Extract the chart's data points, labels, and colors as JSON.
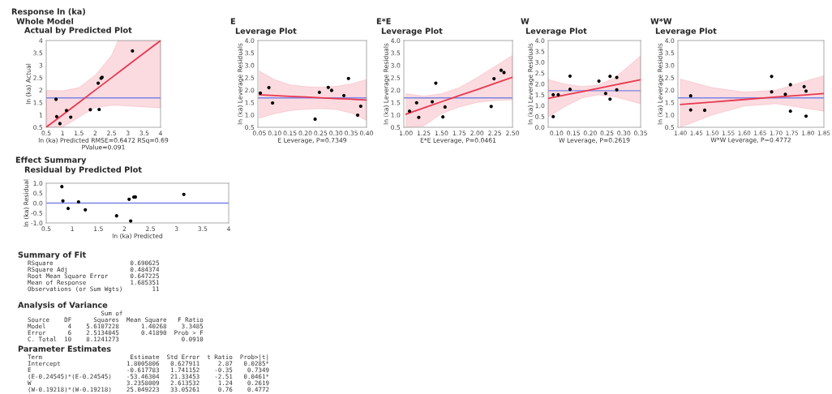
{
  "chart_data": [
    {
      "type": "scatter",
      "title": "Actual by Predicted Plot",
      "annotations": [
        "Response ln (ka)",
        "Whole Model"
      ],
      "xlabel": "ln (ka) Predicted RMSE=0.6472 RSq=0.69\nPValue=0.091",
      "ylabel": "ln (ka) Actual",
      "xlim": [
        0.5,
        4
      ],
      "ylim": [
        0.5,
        4
      ],
      "xticks": [
        0.5,
        1,
        1.5,
        2,
        2.5,
        3,
        3.5,
        4
      ],
      "yticks": [
        0.5,
        1,
        1.5,
        2,
        2.5,
        3,
        3.5,
        4
      ],
      "ref_lines": [
        {
          "axis": "y",
          "value": 1.685,
          "color": "#7b83e8"
        }
      ],
      "series": [
        {
          "type": "line",
          "color": "#e8384f",
          "x": [
            0.5,
            1.0,
            1.5,
            2.0,
            2.5,
            2.7,
            3.0,
            3.5,
            4.0
          ],
          "values": [
            0.5,
            1.0,
            1.5,
            2.0,
            2.5,
            2.7,
            3.0,
            3.5,
            4.0
          ],
          "upper": [
            1.99,
            1.97,
            2.1,
            2.6,
            3.4,
            4.0,
            4.0,
            4.0,
            4.0
          ],
          "lower": [
            0.5,
            0.5,
            0.9,
            1.3,
            1.38,
            1.38,
            1.36,
            1.32,
            1.28
          ]
        },
        {
          "type": "scatter",
          "color": "#000000",
          "marker": "circle",
          "x": [
            0.8,
            0.82,
            0.92,
            1.12,
            1.25,
            1.85,
            2.09,
            2.12,
            2.18,
            2.21,
            3.14
          ],
          "values": [
            1.63,
            0.93,
            0.65,
            1.18,
            0.91,
            1.21,
            2.28,
            1.22,
            2.48,
            2.52,
            3.58
          ]
        }
      ]
    },
    {
      "type": "scatter",
      "title": "E",
      "subtitle": "Leverage Plot",
      "xlabel": "E Leverage, P=0.7349",
      "ylabel": "ln (ka) Leverage Residuals",
      "xlim": [
        0.045,
        0.4
      ],
      "ylim": [
        0.5,
        4.0
      ],
      "xticks": [
        {
          "value": 0.05,
          "label": "0.05"
        },
        {
          "value": 0.1,
          "label": "0.10"
        },
        {
          "value": 0.15,
          "label": "0.15"
        },
        {
          "value": 0.2,
          "label": "0.20"
        },
        {
          "value": 0.25,
          "label": "0.25"
        },
        {
          "value": 0.3,
          "label": "0.30"
        },
        {
          "value": 0.35,
          "label": "0.35"
        },
        {
          "value": 0.4,
          "label": "0.40"
        }
      ],
      "yticks": [
        0.5,
        {
          "value": 1,
          "label": "1.0"
        },
        1.5,
        {
          "value": 2,
          "label": "2.0"
        },
        2.5,
        {
          "value": 3,
          "label": "3.0"
        },
        3.5,
        {
          "value": 4,
          "label": "4.0"
        }
      ],
      "ref_lines": [
        {
          "axis": "y",
          "value": 1.685,
          "color": "#7b83e8"
        }
      ],
      "series": [
        {
          "type": "line",
          "color": "#e8384f",
          "x": [
            0.05,
            0.1,
            0.15,
            0.2,
            0.25,
            0.3,
            0.35,
            0.4
          ],
          "values": [
            1.81,
            1.78,
            1.75,
            1.72,
            1.69,
            1.66,
            1.63,
            1.6
          ],
          "upper": [
            2.77,
            2.42,
            2.22,
            2.14,
            2.12,
            2.15,
            2.25,
            2.43
          ],
          "lower": [
            0.87,
            1.05,
            1.17,
            1.23,
            1.25,
            1.22,
            1.07,
            0.78
          ]
        },
        {
          "type": "scatter",
          "color": "#000000",
          "marker": "circle",
          "x": [
            0.053,
            0.081,
            0.093,
            0.232,
            0.246,
            0.275,
            0.286,
            0.326,
            0.341,
            0.371,
            0.381
          ],
          "values": [
            1.88,
            2.1,
            1.48,
            0.83,
            1.91,
            2.11,
            1.99,
            1.78,
            2.47,
            0.99,
            1.35
          ]
        }
      ]
    },
    {
      "type": "scatter",
      "title": "E*E",
      "subtitle": "Leverage Plot",
      "xlabel": "E*E Leverage, P=0.0461",
      "ylabel": "ln (ka) Leverage Residuals",
      "xlim": [
        0.97,
        2.5
      ],
      "ylim": [
        0.5,
        4.0
      ],
      "xticks": [
        {
          "value": 1,
          "label": "1.00"
        },
        {
          "value": 1.25,
          "label": "1.25"
        },
        {
          "value": 1.5,
          "label": "1.50"
        },
        {
          "value": 1.75,
          "label": "1.75"
        },
        {
          "value": 2,
          "label": "2.00"
        },
        {
          "value": 2.25,
          "label": "2.25"
        },
        {
          "value": 2.5,
          "label": "2.50"
        }
      ],
      "yticks": [
        0.5,
        {
          "value": 1,
          "label": "1.0"
        },
        1.5,
        {
          "value": 2,
          "label": "2.0"
        },
        2.5,
        {
          "value": 3,
          "label": "3.0"
        },
        3.5,
        {
          "value": 4,
          "label": "4.0"
        }
      ],
      "ref_lines": [
        {
          "axis": "y",
          "value": 1.685,
          "color": "#7b83e8"
        }
      ],
      "series": [
        {
          "type": "line",
          "color": "#e8384f",
          "x": [
            1.0,
            1.25,
            1.5,
            1.75,
            2.0,
            2.25,
            2.5
          ],
          "values": [
            1.03,
            1.28,
            1.53,
            1.78,
            2.02,
            2.27,
            2.52
          ],
          "upper": [
            1.86,
            1.76,
            1.86,
            2.1,
            2.5,
            2.95,
            3.4
          ],
          "lower": [
            0.5,
            0.55,
            1.05,
            1.32,
            1.5,
            1.58,
            1.6
          ]
        },
        {
          "type": "scatter",
          "color": "#000000",
          "marker": "circle",
          "x": [
            1.05,
            1.15,
            1.18,
            1.37,
            1.42,
            1.52,
            1.55,
            2.2,
            2.24,
            2.34,
            2.38
          ],
          "values": [
            1.15,
            1.49,
            0.9,
            1.53,
            2.28,
            0.92,
            1.32,
            1.34,
            2.46,
            2.8,
            2.71
          ]
        }
      ]
    },
    {
      "type": "scatter",
      "title": "W",
      "subtitle": "Leverage Plot",
      "xlabel": "W Leverage, P=0.2619",
      "ylabel": "ln (ka) Leverage Residuals",
      "xlim": [
        0.075,
        0.35
      ],
      "ylim": [
        0,
        4.0
      ],
      "xticks": [
        {
          "value": 0.1,
          "label": "0.10"
        },
        {
          "value": 0.15,
          "label": "0.15"
        },
        {
          "value": 0.2,
          "label": "0.20"
        },
        {
          "value": 0.25,
          "label": "0.25"
        },
        {
          "value": 0.3,
          "label": "0.30"
        },
        {
          "value": 0.35,
          "label": "0.35"
        }
      ],
      "yticks": [
        {
          "value": 0,
          "label": "0.0"
        },
        0.5,
        {
          "value": 1,
          "label": "1.0"
        },
        1.5,
        {
          "value": 2,
          "label": "2.0"
        },
        2.5,
        {
          "value": 3,
          "label": "3.0"
        },
        3.5,
        {
          "value": 4,
          "label": "4.0"
        }
      ],
      "ref_lines": [
        {
          "axis": "y",
          "value": 1.685,
          "color": "#7b83e8"
        }
      ],
      "series": [
        {
          "type": "line",
          "color": "#e8384f",
          "x": [
            0.075,
            0.125,
            0.175,
            0.225,
            0.275,
            0.35
          ],
          "values": [
            1.33,
            1.49,
            1.64,
            1.8,
            1.96,
            2.19
          ],
          "upper": [
            2.2,
            2.0,
            1.88,
            1.95,
            2.3,
            3.3
          ],
          "lower": [
            0.48,
            0.95,
            1.35,
            1.5,
            1.4,
            1.08
          ]
        },
        {
          "type": "scatter",
          "color": "#000000",
          "marker": "circle",
          "x": [
            0.09,
            0.105,
            0.14,
            0.14,
            0.226,
            0.246,
            0.259,
            0.259,
            0.279,
            0.279,
            0.09
          ],
          "values": [
            1.5,
            1.5,
            2.36,
            1.75,
            2.13,
            1.56,
            2.35,
            1.3,
            2.3,
            1.73,
            0.49
          ]
        }
      ]
    },
    {
      "type": "scatter",
      "title": "W*W",
      "subtitle": "Leverage Plot",
      "xlabel": "W*W Leverage, P=0.4772",
      "ylabel": "ln (ka) Leverage Residuals",
      "xlim": [
        1.392,
        1.85
      ],
      "ylim": [
        0.5,
        4.0
      ],
      "xticks": [
        {
          "value": 1.4,
          "label": "1.40"
        },
        1.45,
        {
          "value": 1.5,
          "label": "1.50"
        },
        1.55,
        {
          "value": 1.6,
          "label": "1.60"
        },
        1.65,
        {
          "value": 1.7,
          "label": "1.70"
        },
        1.75,
        {
          "value": 1.8,
          "label": "1.80"
        },
        1.85
      ],
      "yticks": [
        0.5,
        {
          "value": 1,
          "label": "1.0"
        },
        1.5,
        {
          "value": 2,
          "label": "2.0"
        },
        2.5,
        {
          "value": 3,
          "label": "3.0"
        },
        3.5,
        {
          "value": 4,
          "label": "4.0"
        }
      ],
      "ref_lines": [
        {
          "axis": "y",
          "value": 1.685,
          "color": "#7b83e8"
        }
      ],
      "series": [
        {
          "type": "line",
          "color": "#e8384f",
          "x": [
            1.4,
            1.5,
            1.6,
            1.7,
            1.8,
            1.85
          ],
          "values": [
            1.42,
            1.52,
            1.62,
            1.72,
            1.81,
            1.86
          ],
          "upper": [
            2.45,
            2.1,
            1.92,
            2.0,
            2.4,
            2.58
          ],
          "lower": [
            0.5,
            1.0,
            1.35,
            1.45,
            1.25,
            1.15
          ]
        },
        {
          "type": "scatter",
          "color": "#000000",
          "marker": "circle",
          "x": [
            1.432,
            1.432,
            1.476,
            1.686,
            1.686,
            1.729,
            1.745,
            1.745,
            1.788,
            1.794,
            1.794
          ],
          "values": [
            1.77,
            1.2,
            1.19,
            2.55,
            1.93,
            1.83,
            2.22,
            1.15,
            2.14,
            1.96,
            0.95
          ]
        }
      ]
    },
    {
      "type": "scatter",
      "title": "Residual by Predicted Plot",
      "annotations": [
        "Effect Summary"
      ],
      "xlabel": "ln (ka) Predicted",
      "ylabel": "ln (ka) Residual",
      "xlim": [
        0.5,
        4
      ],
      "ylim": [
        -1,
        1
      ],
      "xticks": [
        0.5,
        1,
        1.5,
        2,
        2.5,
        3,
        3.5,
        4
      ],
      "yticks": [
        {
          "value": -1,
          "label": "-1.0"
        },
        {
          "value": -0.5,
          "label": "-0.5"
        },
        {
          "value": 0,
          "label": "0.0"
        },
        0.5,
        {
          "value": 1,
          "label": "1.0"
        }
      ],
      "ref_lines": [
        {
          "axis": "y",
          "value": 0,
          "color": "#7b83e8"
        }
      ],
      "series": [
        {
          "type": "scatter",
          "color": "#000000",
          "marker": "circle",
          "x": [
            0.8,
            0.82,
            0.92,
            1.12,
            1.25,
            1.85,
            2.09,
            2.12,
            2.18,
            2.21,
            3.14
          ],
          "values": [
            0.83,
            0.11,
            -0.27,
            0.06,
            -0.34,
            -0.64,
            0.19,
            -0.9,
            0.3,
            0.31,
            0.44
          ]
        }
      ]
    },
    {
      "type": "other",
      "title": "Summary of Fit",
      "annotations": [
        "RSquare                     0.690625",
        "RSquare Adj                 0.484374",
        "Root Mean Square Error      0.647225",
        "Mean of Response            1.685351",
        "Observations (or Sum Wgts)        11"
      ]
    },
    {
      "type": "other",
      "title": "Analysis of Variance",
      "annotations": [
        "                    Sum of",
        "Source    DF      Squares  Mean Square   F Ratio",
        "Model      4    5.6107228      1.40268    3.3485",
        "Error      6    2.5134045      0.41890  Prob > F",
        "C. Total  10    8.1241273                 0.0910"
      ]
    },
    {
      "type": "other",
      "title": "Parameter Estimates",
      "annotations": [
        "Term                        Estimate  Std Error  t Ratio  Prob>|t|",
        "Intercept                  1.8005806   0.627911     2.87   0.0285*",
        "E                          -0.617783   1.741152    -0.35    0.7349",
        "(E-0.24545)*(E-0.24545)    -53.46304   21.33453    -2.51   0.0461*",
        "W                          3.2358009   2.613532     1.24    0.2619",
        "(W-0.19218)*(W-0.19218)    25.049223   33.05261     0.76    0.4772"
      ]
    }
  ]
}
